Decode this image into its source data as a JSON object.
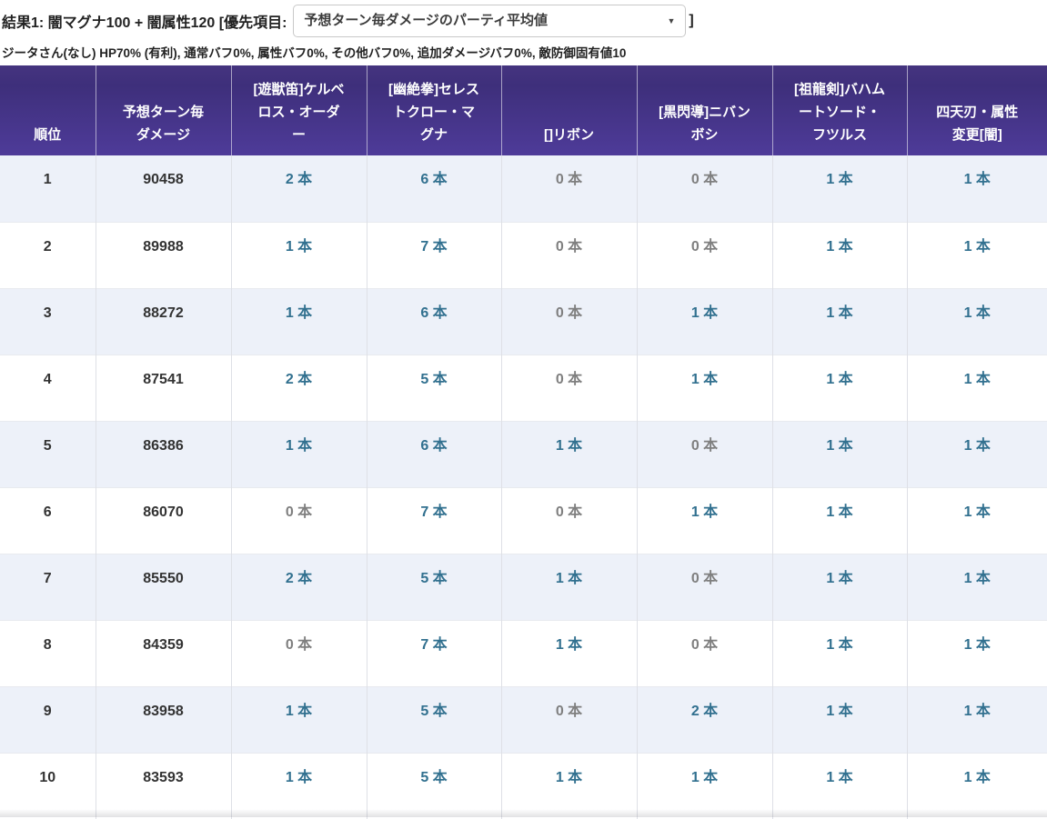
{
  "header": {
    "title_prefix": "結果1: 闇マグナ100 + 闇属性120 [優先項目:",
    "title_suffix": "]",
    "priority_selected": "予想ターン毎ダメージのパーティ平均値",
    "select_caret": "▼",
    "subtitle": "ジータさん(なし) HP70% (有利), 通常バフ0%, 属性バフ0%, その他バフ0%, 追加ダメージバフ0%, 敵防御固有値10"
  },
  "table": {
    "columns": [
      "順位",
      "予想ターン毎\nダメージ",
      "[遊獣笛]ケルベ\nロス・オーダ\nー",
      "[幽絶拳]セレス\nトクロー・マ\nグナ",
      "[]リボン",
      "[黒閃導]ニバン\nボシ",
      "[祖龍剣]バハム\nートソード・\nフツルス",
      "四天刃・属性\n変更[闇]"
    ],
    "unit": "本",
    "rows": [
      {
        "rank": "1",
        "damage": "90458",
        "counts": [
          2,
          6,
          0,
          0,
          1,
          1
        ]
      },
      {
        "rank": "2",
        "damage": "89988",
        "counts": [
          1,
          7,
          0,
          0,
          1,
          1
        ]
      },
      {
        "rank": "3",
        "damage": "88272",
        "counts": [
          1,
          6,
          0,
          1,
          1,
          1
        ]
      },
      {
        "rank": "4",
        "damage": "87541",
        "counts": [
          2,
          5,
          0,
          1,
          1,
          1
        ]
      },
      {
        "rank": "5",
        "damage": "86386",
        "counts": [
          1,
          6,
          1,
          0,
          1,
          1
        ]
      },
      {
        "rank": "6",
        "damage": "86070",
        "counts": [
          0,
          7,
          0,
          1,
          1,
          1
        ]
      },
      {
        "rank": "7",
        "damage": "85550",
        "counts": [
          2,
          5,
          1,
          0,
          1,
          1
        ]
      },
      {
        "rank": "8",
        "damage": "84359",
        "counts": [
          0,
          7,
          1,
          0,
          1,
          1
        ]
      },
      {
        "rank": "9",
        "damage": "83958",
        "counts": [
          1,
          5,
          0,
          2,
          1,
          1
        ]
      },
      {
        "rank": "10",
        "damage": "83593",
        "counts": [
          1,
          5,
          1,
          1,
          1,
          1
        ]
      }
    ]
  },
  "colors": {
    "header_purple_top": "#45347f",
    "header_purple_bottom": "#4e3b99",
    "row_stripe": "#edf1f9",
    "count_positive": "#31708f",
    "count_zero": "#7f7f7f",
    "text_dark": "#333333"
  }
}
